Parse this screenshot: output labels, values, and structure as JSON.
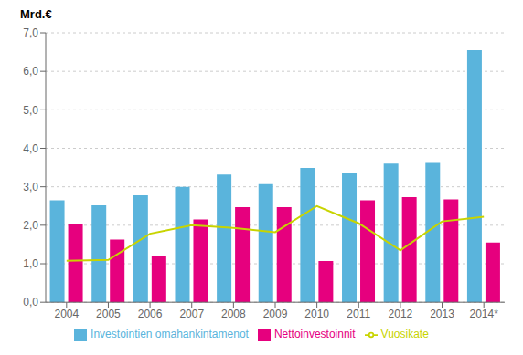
{
  "chart_data": {
    "type": "bar",
    "y_label": "Mrd.€",
    "categories": [
      "2004",
      "2005",
      "2006",
      "2007",
      "2008",
      "2009",
      "2010",
      "2011",
      "2012",
      "2013",
      "2014*"
    ],
    "series": [
      {
        "name": "Investointien omahankintamenot",
        "type": "bar",
        "color": "#5ab4dc",
        "values": [
          2.65,
          2.52,
          2.78,
          3.0,
          3.32,
          3.07,
          3.49,
          3.35,
          3.6,
          3.62,
          6.55
        ]
      },
      {
        "name": "Nettoinvestoinnit",
        "type": "bar",
        "color": "#e6007e",
        "values": [
          2.02,
          1.63,
          1.2,
          2.15,
          2.47,
          2.47,
          1.07,
          2.65,
          2.73,
          2.67,
          1.55
        ]
      },
      {
        "name": "Vuosikate",
        "type": "line",
        "color": "#c8d400",
        "values": [
          1.08,
          1.1,
          1.78,
          2.0,
          1.93,
          1.82,
          2.5,
          2.05,
          1.35,
          2.1,
          2.22
        ]
      }
    ],
    "ylim": [
      0,
      7.0
    ],
    "yticks": [
      {
        "value": 0.0,
        "label": "0,0"
      },
      {
        "value": 1.0,
        "label": "1,0"
      },
      {
        "value": 2.0,
        "label": "2,0"
      },
      {
        "value": 3.0,
        "label": "3,0"
      },
      {
        "value": 4.0,
        "label": "4,0"
      },
      {
        "value": 5.0,
        "label": "5,0"
      },
      {
        "value": 6.0,
        "label": "6,0"
      },
      {
        "value": 7.0,
        "label": "7,0"
      }
    ],
    "grid": true,
    "legend": "bottom"
  }
}
